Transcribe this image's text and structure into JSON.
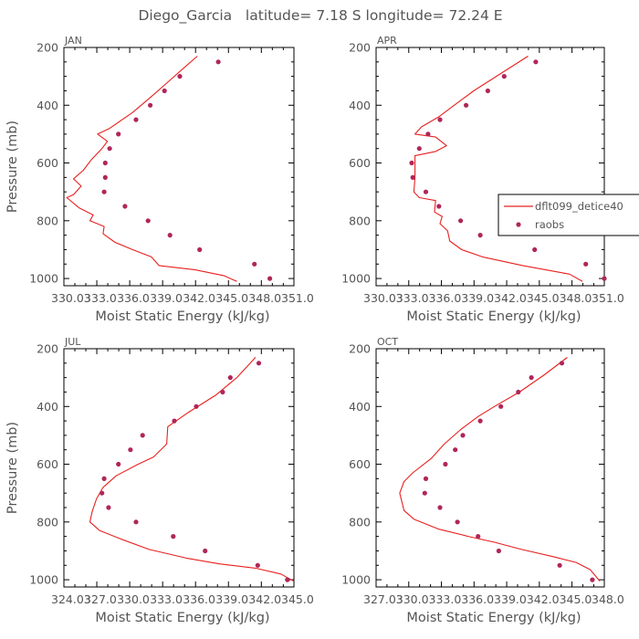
{
  "figure": {
    "title": "Diego_Garcia   latitude= 7.18 S longitude= 72.24 E"
  },
  "legend": {
    "model_label": "dflt099_detice40",
    "obs_label": "raobs",
    "placement": "right of APR panel, clipped by page edge"
  },
  "colors": {
    "model_line": "#e8201f",
    "obs_marker": "#b0265a",
    "axes": "#000000",
    "text": "#555555"
  },
  "chart_data": [
    {
      "type": "line",
      "panel": "JAN",
      "xlabel": "Moist Static Energy (kJ/kg)",
      "ylabel": "Pressure (mb)",
      "xlim": [
        330.03,
        351.0
      ],
      "ylim": [
        1025,
        200
      ],
      "y_inverted": true,
      "xticks": [
        "330.0",
        "333.0",
        "336.0",
        "339.0",
        "342.0",
        "345.0",
        "348.0",
        "351.0"
      ],
      "yticks": [
        200,
        400,
        600,
        800,
        1000
      ],
      "grid": false,
      "series": [
        {
          "name": "dflt099_detice40",
          "kind": "line",
          "points": [
            [
              342.2,
              230
            ],
            [
              341.0,
              270
            ],
            [
              339.5,
              320
            ],
            [
              338.0,
              370
            ],
            [
              336.3,
              425
            ],
            [
              334.2,
              480
            ],
            [
              333.1,
              500
            ],
            [
              334.0,
              525
            ],
            [
              333.5,
              550
            ],
            [
              332.5,
              590
            ],
            [
              331.8,
              625
            ],
            [
              330.9,
              655
            ],
            [
              331.6,
              680
            ],
            [
              330.9,
              710
            ],
            [
              330.3,
              720
            ],
            [
              331.4,
              755
            ],
            [
              332.7,
              780
            ],
            [
              332.4,
              800
            ],
            [
              333.7,
              820
            ],
            [
              333.6,
              845
            ],
            [
              334.7,
              875
            ],
            [
              336.3,
              900
            ],
            [
              338.0,
              925
            ],
            [
              338.7,
              955
            ],
            [
              342.0,
              970
            ],
            [
              344.6,
              990
            ],
            [
              345.8,
              1010
            ]
          ]
        },
        {
          "name": "raobs",
          "kind": "scatter",
          "points": [
            [
              344.1,
              250
            ],
            [
              340.6,
              300
            ],
            [
              339.2,
              350
            ],
            [
              337.9,
              400
            ],
            [
              336.6,
              450
            ],
            [
              335.0,
              500
            ],
            [
              334.2,
              550
            ],
            [
              333.8,
              600
            ],
            [
              333.8,
              650
            ],
            [
              333.7,
              700
            ],
            [
              335.6,
              750
            ],
            [
              337.7,
              800
            ],
            [
              339.7,
              850
            ],
            [
              342.4,
              900
            ],
            [
              347.4,
              950
            ],
            [
              348.8,
              1000
            ]
          ]
        }
      ]
    },
    {
      "type": "line",
      "panel": "APR",
      "xlabel": "Moist Static Energy (kJ/kg)",
      "ylabel": "",
      "xlim": [
        330.03,
        351.0
      ],
      "ylim": [
        1025,
        200
      ],
      "y_inverted": true,
      "xticks": [
        "330.0",
        "333.0",
        "336.0",
        "339.0",
        "342.0",
        "345.0",
        "348.0",
        "351.0"
      ],
      "yticks": [
        200,
        400,
        600,
        800,
        1000
      ],
      "grid": false,
      "series": [
        {
          "name": "dflt099_detice40",
          "kind": "line",
          "points": [
            [
              344.0,
              230
            ],
            [
              341.5,
              290
            ],
            [
              339.0,
              350
            ],
            [
              337.2,
              400
            ],
            [
              335.8,
              440
            ],
            [
              334.2,
              475
            ],
            [
              333.6,
              500
            ],
            [
              335.5,
              510
            ],
            [
              336.5,
              540
            ],
            [
              335.5,
              560
            ],
            [
              333.6,
              575
            ],
            [
              333.6,
              650
            ],
            [
              333.5,
              700
            ],
            [
              334.0,
              720
            ],
            [
              335.5,
              730
            ],
            [
              335.4,
              770
            ],
            [
              336.1,
              785
            ],
            [
              335.9,
              810
            ],
            [
              336.6,
              835
            ],
            [
              336.8,
              870
            ],
            [
              337.9,
              900
            ],
            [
              339.8,
              925
            ],
            [
              343.5,
              955
            ],
            [
              347.8,
              985
            ],
            [
              349.0,
              1010
            ]
          ]
        },
        {
          "name": "raobs",
          "kind": "scatter",
          "points": [
            [
              344.7,
              250
            ],
            [
              341.8,
              300
            ],
            [
              340.3,
              350
            ],
            [
              338.3,
              400
            ],
            [
              335.9,
              450
            ],
            [
              334.8,
              500
            ],
            [
              334.0,
              550
            ],
            [
              333.3,
              600
            ],
            [
              333.4,
              650
            ],
            [
              334.6,
              700
            ],
            [
              335.8,
              750
            ],
            [
              337.8,
              800
            ],
            [
              339.6,
              850
            ],
            [
              344.6,
              900
            ],
            [
              349.3,
              950
            ],
            [
              351.0,
              1000
            ]
          ]
        }
      ]
    },
    {
      "type": "line",
      "panel": "JUL",
      "xlabel": "Moist Static Energy (kJ/kg)",
      "ylabel": "Pressure (mb)",
      "xlim": [
        324.03,
        345.0
      ],
      "ylim": [
        1025,
        200
      ],
      "y_inverted": true,
      "xticks": [
        "324.0",
        "327.0",
        "330.0",
        "333.0",
        "336.0",
        "339.0",
        "342.0",
        "345.0"
      ],
      "yticks": [
        200,
        400,
        600,
        800,
        1000
      ],
      "grid": false,
      "series": [
        {
          "name": "dflt099_detice40",
          "kind": "line",
          "points": [
            [
              341.5,
              230
            ],
            [
              339.8,
              300
            ],
            [
              337.9,
              360
            ],
            [
              335.4,
              420
            ],
            [
              333.5,
              470
            ],
            [
              333.4,
              530
            ],
            [
              332.2,
              575
            ],
            [
              330.8,
              600
            ],
            [
              328.8,
              640
            ],
            [
              327.6,
              680
            ],
            [
              327.0,
              720
            ],
            [
              326.6,
              765
            ],
            [
              326.4,
              800
            ],
            [
              327.3,
              830
            ],
            [
              329.3,
              860
            ],
            [
              331.8,
              895
            ],
            [
              335.2,
              925
            ],
            [
              338.2,
              945
            ],
            [
              341.5,
              960
            ],
            [
              343.8,
              980
            ],
            [
              345.0,
              1005
            ]
          ]
        },
        {
          "name": "raobs",
          "kind": "scatter",
          "points": [
            [
              341.8,
              250
            ],
            [
              339.2,
              300
            ],
            [
              338.5,
              350
            ],
            [
              336.1,
              400
            ],
            [
              334.1,
              450
            ],
            [
              331.2,
              500
            ],
            [
              330.1,
              550
            ],
            [
              329.0,
              600
            ],
            [
              327.7,
              650
            ],
            [
              327.5,
              700
            ],
            [
              328.1,
              750
            ],
            [
              330.6,
              800
            ],
            [
              334.0,
              850
            ],
            [
              336.9,
              900
            ],
            [
              341.7,
              950
            ],
            [
              344.4,
              1000
            ]
          ]
        }
      ]
    },
    {
      "type": "line",
      "panel": "OCT",
      "xlabel": "Moist Static Energy (kJ/kg)",
      "ylabel": "",
      "xlim": [
        327.03,
        348.0
      ],
      "ylim": [
        1025,
        200
      ],
      "y_inverted": true,
      "xticks": [
        "327.0",
        "330.0",
        "333.0",
        "336.0",
        "339.0",
        "342.0",
        "345.0",
        "348.0"
      ],
      "yticks": [
        200,
        400,
        600,
        800,
        1000
      ],
      "grid": false,
      "series": [
        {
          "name": "dflt099_detice40",
          "kind": "line",
          "points": [
            [
              344.6,
              230
            ],
            [
              342.5,
              290
            ],
            [
              340.2,
              350
            ],
            [
              337.9,
              400
            ],
            [
              336.4,
              435
            ],
            [
              334.8,
              480
            ],
            [
              333.3,
              530
            ],
            [
              332.1,
              580
            ],
            [
              330.4,
              630
            ],
            [
              329.6,
              660
            ],
            [
              329.2,
              700
            ],
            [
              329.6,
              760
            ],
            [
              330.5,
              790
            ],
            [
              332.8,
              825
            ],
            [
              335.5,
              850
            ],
            [
              337.9,
              870
            ],
            [
              340.4,
              895
            ],
            [
              343.3,
              920
            ],
            [
              345.4,
              940
            ],
            [
              346.7,
              965
            ],
            [
              347.6,
              1005
            ]
          ]
        },
        {
          "name": "raobs",
          "kind": "scatter",
          "points": [
            [
              344.1,
              250
            ],
            [
              341.3,
              300
            ],
            [
              340.1,
              350
            ],
            [
              338.5,
              400
            ],
            [
              336.6,
              450
            ],
            [
              335.0,
              500
            ],
            [
              334.3,
              550
            ],
            [
              333.4,
              600
            ],
            [
              331.6,
              650
            ],
            [
              331.5,
              700
            ],
            [
              332.9,
              750
            ],
            [
              334.5,
              800
            ],
            [
              336.4,
              850
            ],
            [
              338.3,
              900
            ],
            [
              343.9,
              950
            ],
            [
              346.9,
              1000
            ]
          ]
        }
      ]
    }
  ]
}
